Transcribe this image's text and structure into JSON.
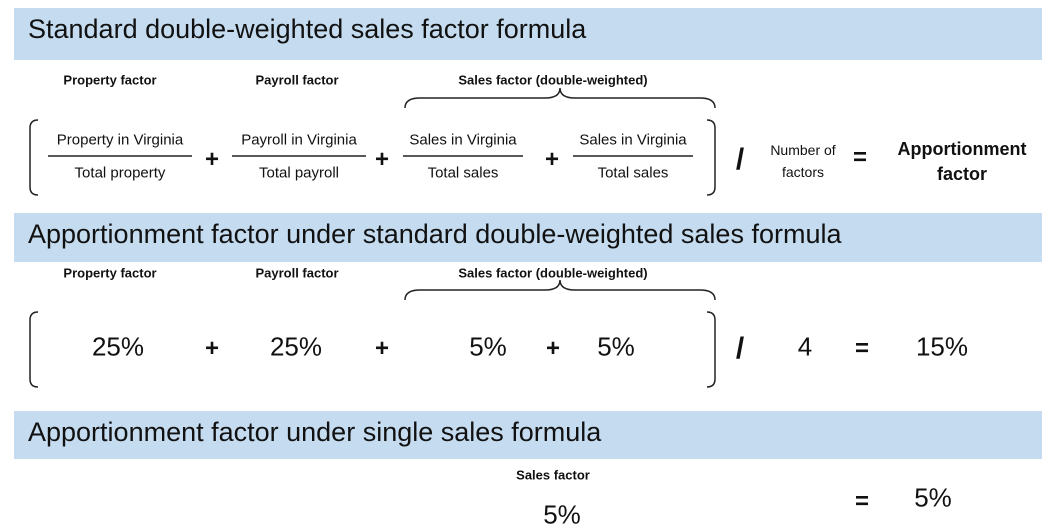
{
  "operators": {
    "plus": "+",
    "divide": "/",
    "equals": "="
  },
  "sections": [
    {
      "title": "Standard double-weighted sales factor formula",
      "labels": [
        "Property factor",
        "Payroll factor",
        "Sales factor (double-weighted)"
      ],
      "fractions": [
        {
          "numerator": "Property in Virginia",
          "denominator": "Total property"
        },
        {
          "numerator": "Payroll in Virginia",
          "denominator": "Total payroll"
        },
        {
          "numerator": "Sales in Virginia",
          "denominator": "Total sales"
        },
        {
          "numerator": "Sales in Virginia",
          "denominator": "Total sales"
        }
      ],
      "divisor": "Number of factors",
      "result": "Apportionment factor"
    },
    {
      "title": "Apportionment factor under standard double-weighted sales formula",
      "labels": [
        "Property factor",
        "Payroll factor",
        "Sales factor (double-weighted)"
      ],
      "values": [
        "25%",
        "25%",
        "5%",
        "5%"
      ],
      "divisor": "4",
      "result": "15%"
    },
    {
      "title": "Apportionment factor under single sales formula",
      "labels": [
        "Sales factor"
      ],
      "values": [
        "5%"
      ],
      "result": "5%"
    }
  ]
}
